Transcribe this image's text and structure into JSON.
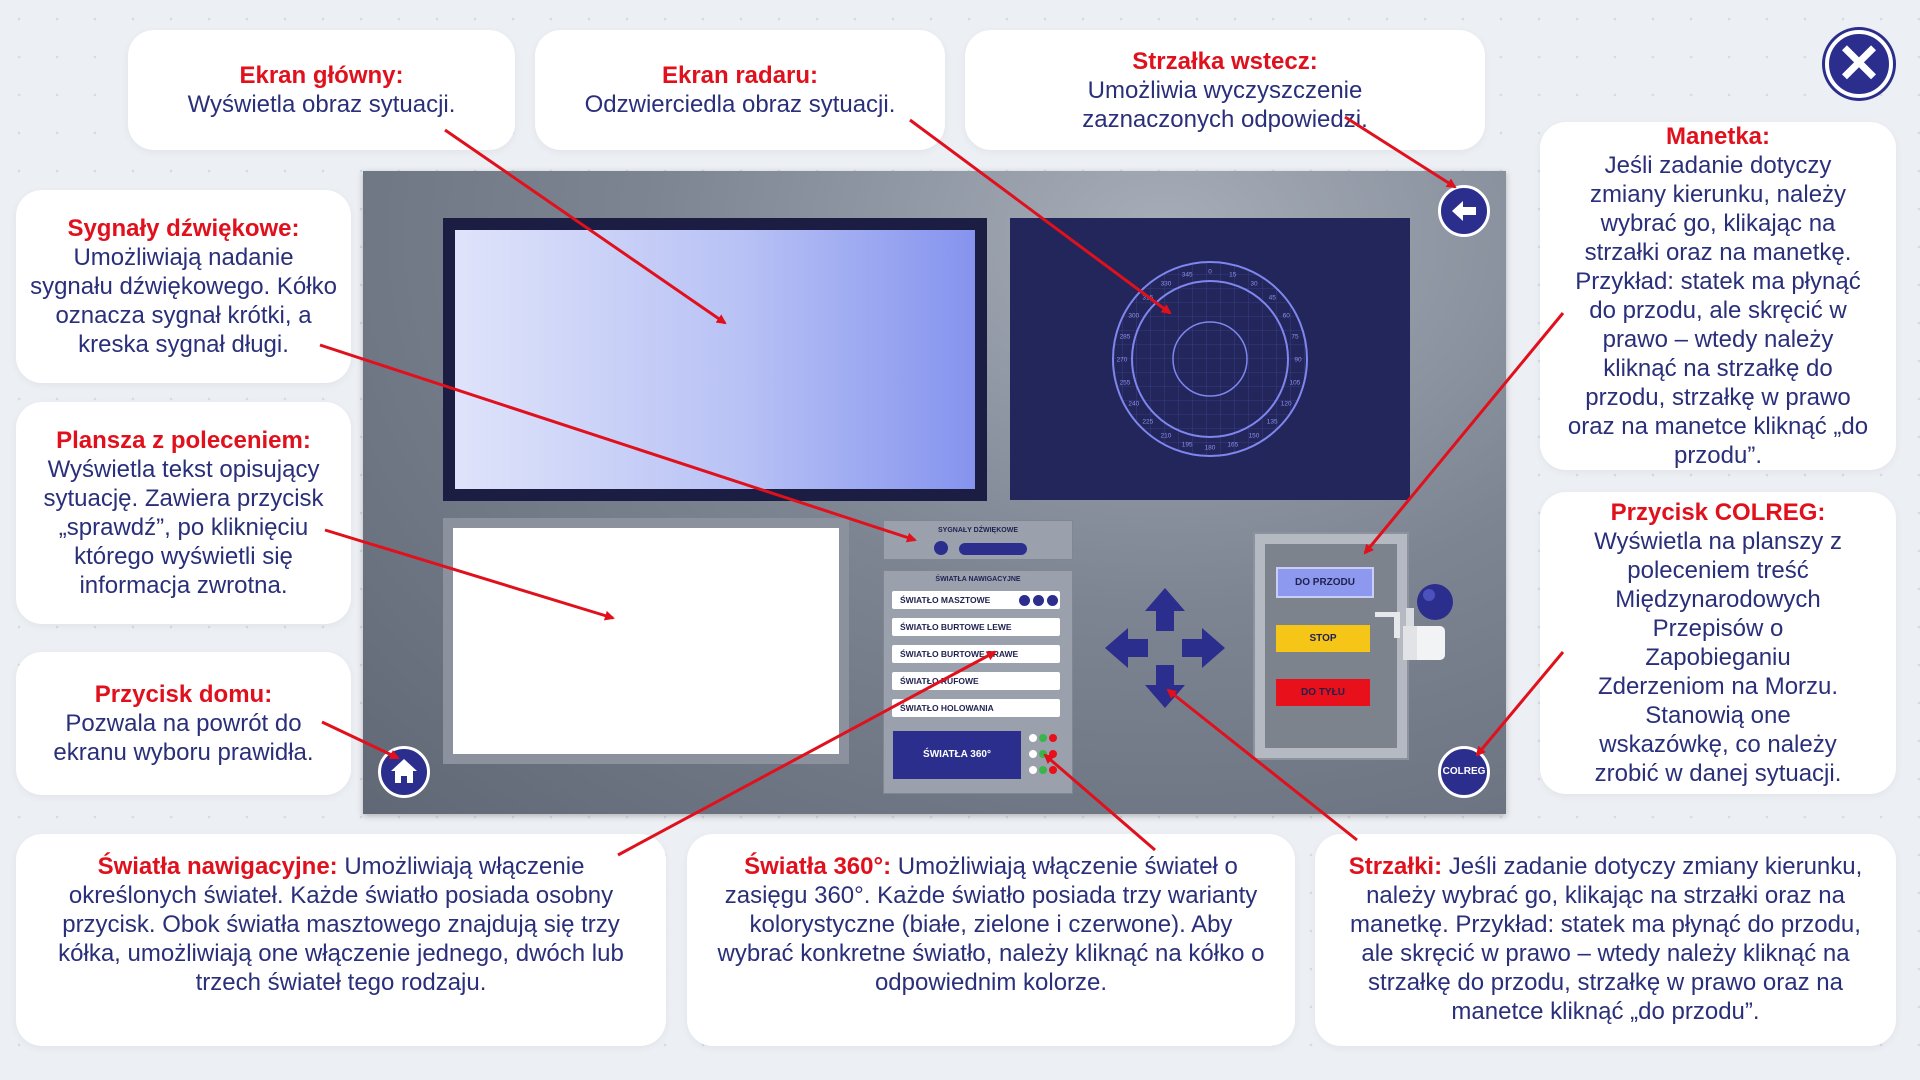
{
  "close_label": "✕",
  "cards": {
    "main_screen": {
      "title": "Ekran główny:",
      "text": "Wyświetla obraz sytuacji."
    },
    "radar_screen": {
      "title": "Ekran radaru:",
      "text": "Odzwierciedla obraz sytuacji."
    },
    "back_arrow": {
      "title": "Strzałka wstecz:",
      "text": "Umożliwia wyczyszczenie zaznaczonych odpowiedzi."
    },
    "sound_signals": {
      "title": "Sygnały dźwiękowe:",
      "text": "Umożliwiają nadanie sygnału dźwiękowego. Kółko oznacza sygnał krótki, a kreska sygnał długi."
    },
    "task_board": {
      "title": "Plansza z poleceniem:",
      "text": "Wyświetla tekst opisujący sytuację. Zawiera przycisk „sprawdź”, po kliknięciu którego wyświetli się informacja zwrotna."
    },
    "home_button": {
      "title": "Przycisk domu:",
      "text": "Pozwala na powrót do ekranu wyboru prawidła."
    },
    "throttle": {
      "title": "Manetka:",
      "text": "Jeśli zadanie dotyczy zmiany kierunku, należy wybrać go, klikając na strzałki oraz na manetkę. Przykład: statek ma płynąć do przodu, ale skręcić w prawo – wtedy należy kliknąć na strzałkę do przodu, strzałkę w prawo oraz na manetce kliknąć „do przodu”."
    },
    "colreg_button": {
      "title": "Przycisk COLREG:",
      "text": "Wyświetla na planszy z poleceniem treść Międzynarodowych Przepisów o Zapobieganiu Zderzeniom na Morzu. Stanowią one wskazówkę, co należy zrobić w danej sytuacji."
    },
    "nav_lights": {
      "title": "Światła nawigacyjne:",
      "text": " Umożliwiają włączenie określonych świateł. Każde światło posiada osobny przycisk. Obok światła masztowego znajdują się trzy kółka, umożliwiają one włączenie jednego, dwóch lub trzech świateł tego rodzaju."
    },
    "lights_360": {
      "title": "Światła 360°:",
      "text": " Umożliwiają włączenie świateł o zasięgu 360°. Każde światło posiada trzy warianty kolorystyczne (białe, zielone i czerwone). Aby wybrać konkretne światło, należy kliknąć na kółko o odpowiednim kolorze."
    },
    "arrows": {
      "title": "Strzałki:",
      "text": " Jeśli zadanie dotyczy zmiany kierunku, należy wybrać go, klikając na strzałki oraz na manetkę. Przykład: statek ma płynąć do przodu, ale skręcić w prawo – wtedy należy kliknąć na strzałkę do przodu, strzałkę w prawo oraz na manetce kliknąć „do przodu”."
    }
  },
  "console": {
    "sound_panel_label": "SYGNAŁY DŹWIĘKOWE",
    "nav_panel_label": "ŚWIATŁA NAWIGACYJNE",
    "nav_buttons": [
      "ŚWIATŁO MASZTOWE",
      "ŚWIATŁO BURTOWE LEWE",
      "ŚWIATŁO BURTOWE PRAWE",
      "ŚWIATŁO RUFOWE",
      "ŚWIATŁO HOLOWANIA"
    ],
    "btn_360": "ŚWIATŁA 360°",
    "rudder": {
      "forward": "DO PRZODU",
      "stop": "STOP",
      "back": "DO TYŁU"
    },
    "colreg_label": "COLREG",
    "radar_bearings": [
      "0",
      "15",
      "30",
      "45",
      "60",
      "75",
      "90",
      "105",
      "120",
      "135",
      "150",
      "165",
      "180",
      "195",
      "210",
      "225",
      "240",
      "255",
      "270",
      "285",
      "300",
      "315",
      "330",
      "345"
    ]
  },
  "colors": {
    "accent": "#2b2e8c",
    "title_red": "#e0101c",
    "arrow_red": "#e0101c",
    "stop_yellow": "#f5c518",
    "back_red": "#e8101a",
    "forward_blue": "#8d99ee"
  }
}
